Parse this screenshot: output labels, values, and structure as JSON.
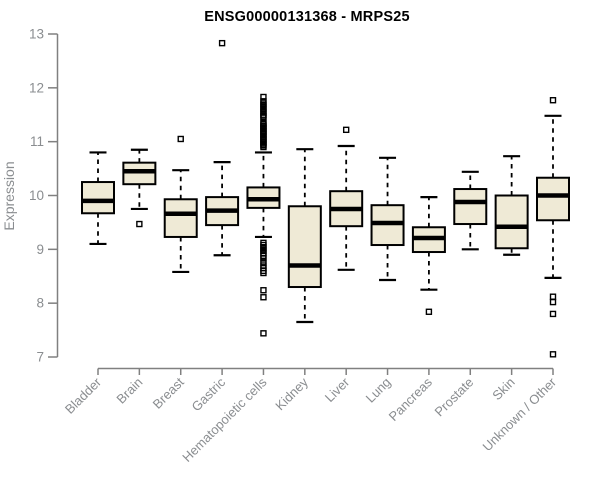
{
  "chart_data": {
    "type": "boxplot",
    "title": "ENSG00000131368 - MRPS25",
    "ylabel": "Expression",
    "xlabel": "",
    "ylim": [
      7,
      13
    ],
    "yticks": [
      7,
      8,
      9,
      10,
      11,
      12,
      13
    ],
    "grid": false,
    "legend": "none",
    "background": "#ffffff",
    "colors": {
      "box_fill": "#efead6",
      "box_border": "#000000",
      "median": "#000000",
      "whisker": "#000000",
      "outlier": "#000000",
      "axis": "#808080",
      "tick_label": "#8a8d90",
      "title": "#000000"
    },
    "categories": [
      "Bladder",
      "Brain",
      "Breast",
      "Gastric",
      "Hematopoietic cells",
      "Kidney",
      "Liver",
      "Lung",
      "Pancreas",
      "Prostate",
      "Skin",
      "Unknown / Other"
    ],
    "series": [
      {
        "category": "Bladder",
        "whisker_low": 9.1,
        "q1": 9.67,
        "median": 9.9,
        "q3": 10.25,
        "whisker_high": 10.8,
        "outliers": []
      },
      {
        "category": "Brain",
        "whisker_low": 9.75,
        "q1": 10.21,
        "median": 10.45,
        "q3": 10.61,
        "whisker_high": 10.85,
        "outliers": [
          9.47
        ]
      },
      {
        "category": "Breast",
        "whisker_low": 8.58,
        "q1": 9.23,
        "median": 9.66,
        "q3": 9.93,
        "whisker_high": 10.47,
        "outliers": [
          11.05
        ]
      },
      {
        "category": "Gastric",
        "whisker_low": 8.89,
        "q1": 9.45,
        "median": 9.72,
        "q3": 9.97,
        "whisker_high": 10.62,
        "outliers": [
          12.83
        ]
      },
      {
        "category": "Hematopoietic cells",
        "whisker_low": 9.23,
        "q1": 9.77,
        "median": 9.93,
        "q3": 10.15,
        "whisker_high": 10.8,
        "outliers": [
          11.83,
          11.75,
          11.71,
          11.68,
          11.64,
          11.61,
          11.57,
          11.54,
          11.5,
          11.47,
          11.45,
          11.35,
          11.33,
          11.3,
          11.28,
          11.25,
          11.23,
          11.2,
          11.18,
          11.15,
          11.13,
          11.1,
          11.08,
          11.05,
          11.03,
          11.0,
          10.98,
          10.95,
          10.93,
          10.9,
          9.12,
          9.08,
          9.04,
          9.0,
          8.97,
          8.93,
          8.88,
          8.83,
          8.76,
          8.7,
          8.65,
          8.6,
          8.56,
          8.24,
          8.11,
          7.44
        ]
      },
      {
        "category": "Kidney",
        "whisker_low": 7.65,
        "q1": 8.3,
        "median": 8.7,
        "q3": 9.8,
        "whisker_high": 10.86,
        "outliers": []
      },
      {
        "category": "Liver",
        "whisker_low": 8.62,
        "q1": 9.43,
        "median": 9.75,
        "q3": 10.08,
        "whisker_high": 10.92,
        "outliers": [
          11.22
        ]
      },
      {
        "category": "Lung",
        "whisker_low": 8.43,
        "q1": 9.08,
        "median": 9.49,
        "q3": 9.82,
        "whisker_high": 10.7,
        "outliers": []
      },
      {
        "category": "Pancreas",
        "whisker_low": 8.25,
        "q1": 8.95,
        "median": 9.21,
        "q3": 9.41,
        "whisker_high": 9.97,
        "outliers": [
          7.84
        ]
      },
      {
        "category": "Prostate",
        "whisker_low": 9.0,
        "q1": 9.47,
        "median": 9.88,
        "q3": 10.12,
        "whisker_high": 10.44,
        "outliers": []
      },
      {
        "category": "Skin",
        "whisker_low": 8.9,
        "q1": 9.02,
        "median": 9.42,
        "q3": 10.0,
        "whisker_high": 10.73,
        "outliers": []
      },
      {
        "category": "Unknown / Other",
        "whisker_low": 8.47,
        "q1": 9.54,
        "median": 10.0,
        "q3": 10.33,
        "whisker_high": 11.48,
        "outliers": [
          11.77,
          8.12,
          8.02,
          7.8,
          7.05
        ]
      }
    ]
  }
}
